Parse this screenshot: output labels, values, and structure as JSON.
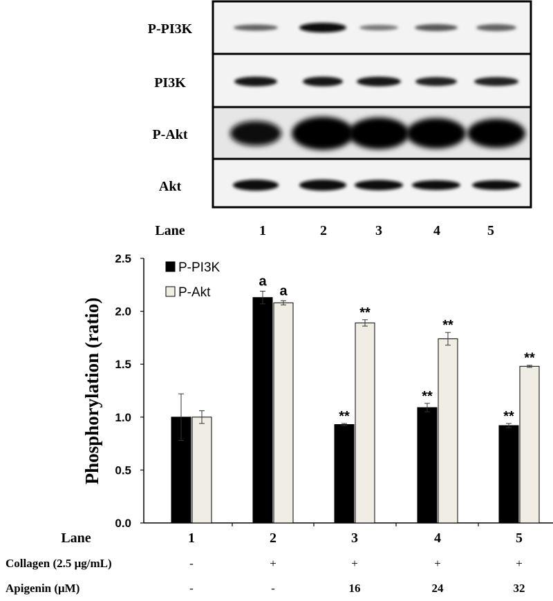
{
  "blot": {
    "rows": [
      {
        "label": "P-PI3K"
      },
      {
        "label": "PI3K"
      },
      {
        "label": "P-Akt"
      },
      {
        "label": "Akt"
      }
    ],
    "lane_title": "Lane",
    "lane_numbers": [
      "1",
      "2",
      "3",
      "4",
      "5"
    ]
  },
  "chart_data": {
    "type": "bar",
    "categories": [
      "1",
      "2",
      "3",
      "4",
      "5"
    ],
    "series": [
      {
        "name": "P-PI3K",
        "color": "#000000",
        "values": [
          1.0,
          2.13,
          0.93,
          1.09,
          0.92
        ],
        "errors": [
          0.22,
          0.06,
          0.01,
          0.04,
          0.02
        ],
        "annotations": [
          "",
          "a",
          "**",
          "**",
          "**"
        ]
      },
      {
        "name": "P-Akt",
        "color": "#efede4",
        "values": [
          1.0,
          2.08,
          1.89,
          1.74,
          1.48
        ],
        "errors": [
          0.06,
          0.02,
          0.03,
          0.06,
          0.01
        ],
        "annotations": [
          "",
          "a",
          "**",
          "**",
          "**"
        ]
      }
    ],
    "ylabel": "Phosphorylation (ratio)",
    "xlabel": "Lane",
    "ylim": [
      0,
      2.5
    ],
    "yticks": [
      "0.0",
      "0.5",
      "1.0",
      "1.5",
      "2.0",
      "2.5"
    ],
    "legend_position": "top-left",
    "grid": false
  },
  "conditions": [
    {
      "label": "Collagen  (2.5 μg/mL)",
      "values": [
        "-",
        "+",
        "+",
        "+",
        "+"
      ]
    },
    {
      "label": "Apigenin (μM)",
      "values": [
        "-",
        "-",
        "16",
        "24",
        "32"
      ]
    }
  ]
}
